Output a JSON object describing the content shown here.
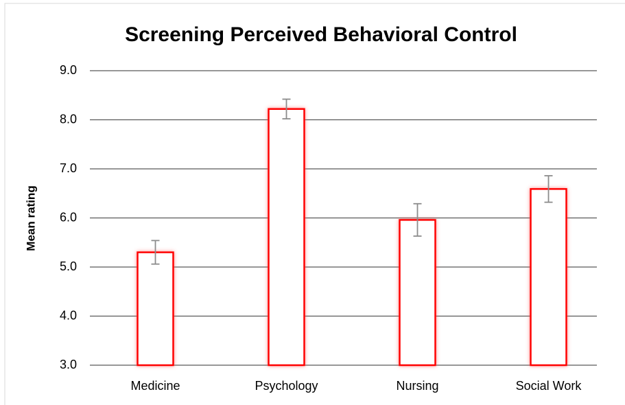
{
  "chart_data": {
    "type": "bar",
    "title": "Screening Perceived Behavioral Control",
    "y_label": "Mean rating",
    "categories": [
      "Medicine",
      "Psychology",
      "Nursing",
      "Social Work"
    ],
    "values": [
      5.3,
      8.22,
      5.96,
      6.59
    ],
    "errors": [
      0.24,
      0.2,
      0.33,
      0.27
    ],
    "color": "#ff0000",
    "error_color": "#8c8c8c",
    "ylim": [
      3,
      9
    ],
    "yticks": [
      {
        "value": 3,
        "label": "3.0"
      },
      {
        "value": 4,
        "label": "4.0"
      },
      {
        "value": 5,
        "label": "5.0"
      },
      {
        "value": 6,
        "label": "6.0"
      },
      {
        "value": 7,
        "label": "7.0"
      },
      {
        "value": 8,
        "label": "8.0"
      },
      {
        "value": 9,
        "label": "9.0"
      }
    ],
    "grid": true
  }
}
